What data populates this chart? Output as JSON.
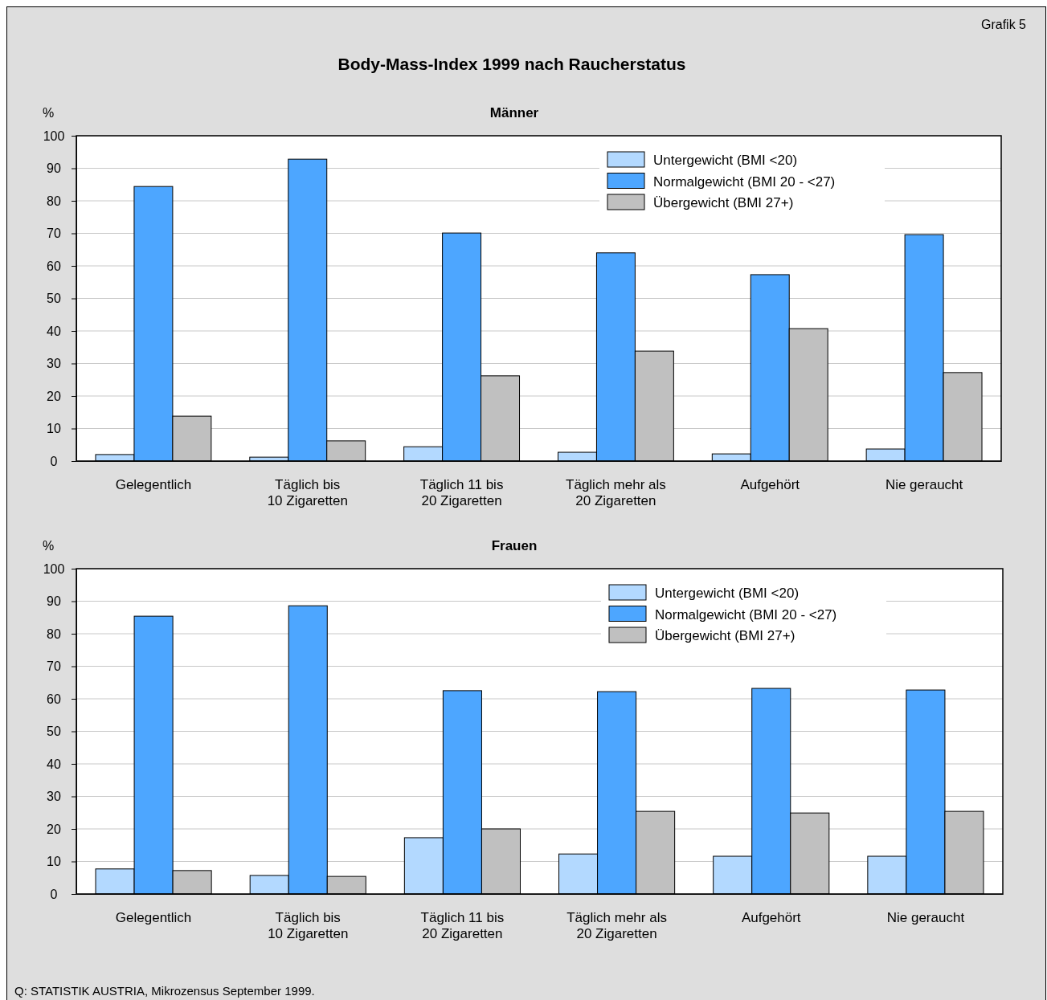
{
  "chart_data": [
    {
      "type": "bar",
      "title": "Body-Mass-Index 1999 nach Raucherstatus",
      "subtitle": "Männer",
      "ylabel": "%",
      "annotations": [
        "Grafik 5"
      ],
      "categories": [
        "Gelegentlich",
        "Täglich bis\n10 Zigaretten",
        "Täglich 11 bis\n20 Zigaretten",
        "Täglich mehr als\n20 Zigaretten",
        "Aufgehört",
        "Nie geraucht"
      ],
      "series": [
        {
          "name": "Untergewicht (BMI <20)",
          "color": "#b3d9ff",
          "values": [
            2.0,
            1.2,
            4.4,
            2.7,
            2.2,
            3.7
          ]
        },
        {
          "name": "Normalgewicht (BMI 20 - <27)",
          "color": "#4da6ff",
          "values": [
            84.4,
            92.8,
            70.1,
            64.0,
            57.3,
            69.6
          ]
        },
        {
          "name": "Übergewicht (BMI 27+)",
          "color": "#c0c0c0",
          "values": [
            13.8,
            6.2,
            26.2,
            33.8,
            40.7,
            27.2
          ]
        }
      ],
      "ylim": [
        0,
        100
      ],
      "yticks": [
        0,
        10,
        20,
        30,
        40,
        50,
        60,
        70,
        80,
        90,
        100
      ],
      "grid": "y",
      "legend": "top right"
    },
    {
      "type": "bar",
      "title": "Frauen",
      "ylabel": "%",
      "annotations": [
        "Q: STATISTIK AUSTRIA, Mikrozensus September 1999."
      ],
      "categories": [
        "Gelegentlich",
        "Täglich bis\n10 Zigaretten",
        "Täglich 11 bis\n20 Zigaretten",
        "Täglich mehr als\n20 Zigaretten",
        "Aufgehört",
        "Nie geraucht"
      ],
      "series": [
        {
          "name": "Untergewicht (BMI <20)",
          "color": "#b3d9ff",
          "values": [
            7.7,
            5.7,
            17.3,
            12.3,
            11.6,
            11.6
          ]
        },
        {
          "name": "Normalgewicht (BMI 20 - <27)",
          "color": "#4da6ff",
          "values": [
            85.4,
            88.6,
            62.5,
            62.2,
            63.2,
            62.7
          ]
        },
        {
          "name": "Übergewicht (BMI 27+)",
          "color": "#c0c0c0",
          "values": [
            7.2,
            5.4,
            20.0,
            25.4,
            24.9,
            25.4
          ]
        }
      ],
      "ylim": [
        0,
        100
      ],
      "yticks": [
        0,
        10,
        20,
        30,
        40,
        50,
        60,
        70,
        80,
        90,
        100
      ],
      "grid": "y",
      "legend": "top right"
    }
  ]
}
